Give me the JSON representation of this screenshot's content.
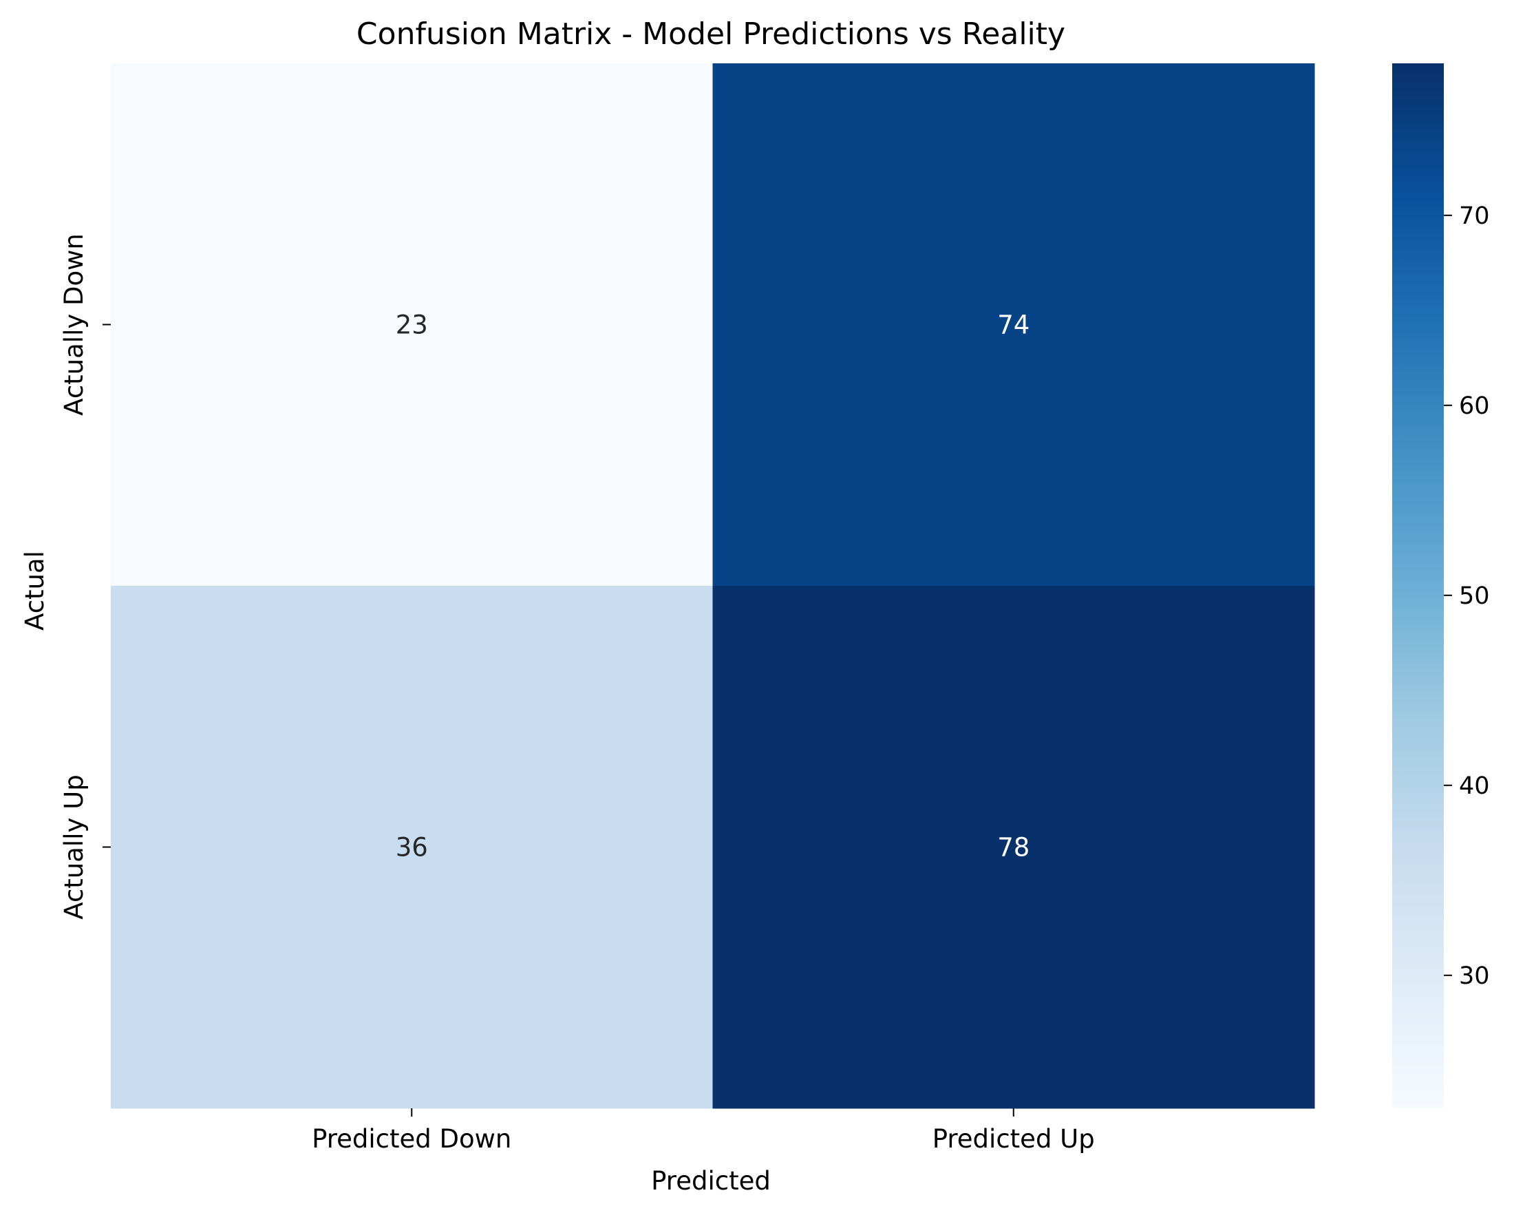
{
  "chart_data": {
    "type": "heatmap",
    "title": "Confusion Matrix - Model Predictions vs Reality",
    "xlabel": "Predicted",
    "ylabel": "Actual",
    "x_categories": [
      "Predicted Down",
      "Predicted Up"
    ],
    "y_categories": [
      "Actually Down",
      "Actually Up"
    ],
    "values": [
      [
        23,
        74
      ],
      [
        36,
        78
      ]
    ],
    "colormap": "Blues",
    "colorbar": {
      "range": [
        23,
        78
      ],
      "ticks": [
        30,
        40,
        50,
        60,
        70
      ]
    },
    "annotations": "cell values shown",
    "grid": false,
    "legend": "colorbar right"
  }
}
